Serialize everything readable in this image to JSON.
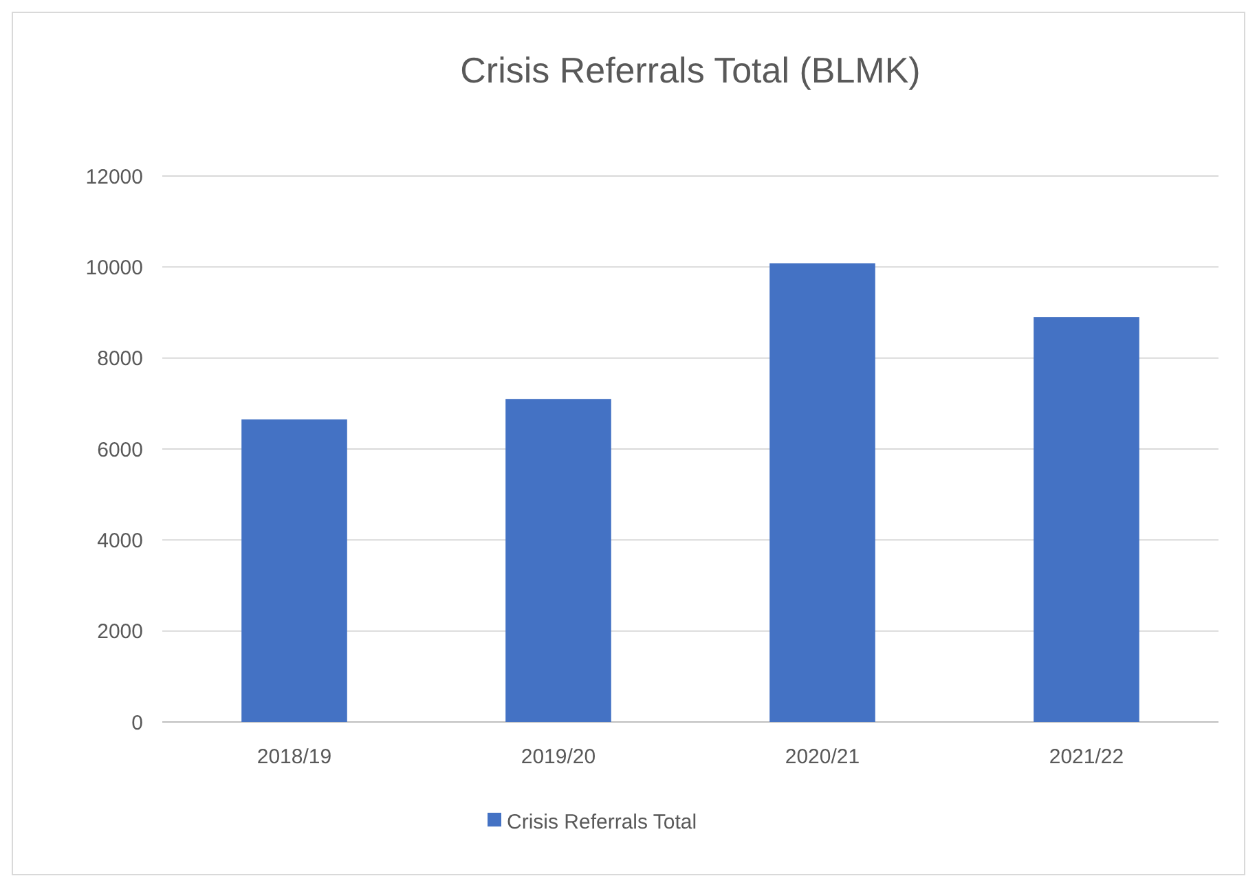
{
  "chart_data": {
    "type": "bar",
    "title": "Crisis Referrals Total (BLMK)",
    "categories": [
      "2018/19",
      "2019/20",
      "2020/21",
      "2021/22"
    ],
    "series": [
      {
        "name": "Crisis Referrals Total",
        "color": "#4472c4",
        "values": [
          6650,
          7100,
          10080,
          8900
        ]
      }
    ],
    "ylim": [
      0,
      12000
    ],
    "yticks": [
      0,
      2000,
      4000,
      6000,
      8000,
      10000,
      12000
    ],
    "grid": "y",
    "legend": "bottom"
  }
}
